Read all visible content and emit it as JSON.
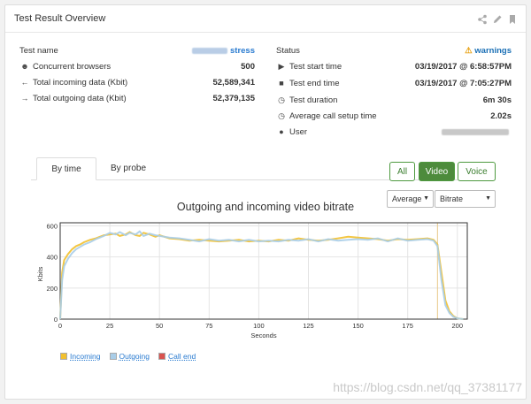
{
  "header": {
    "title": "Test Result Overview",
    "icons": [
      "share-icon",
      "pencil-icon",
      "bookmark-icon"
    ]
  },
  "left_info": {
    "test_name_label": "Test name",
    "test_name_value": "stress",
    "concurrent_label": "Concurrent browsers",
    "concurrent_value": "500",
    "incoming_label": "Total incoming data (Kbit)",
    "incoming_value": "52,589,341",
    "outgoing_label": "Total outgoing data (Kbit)",
    "outgoing_value": "52,379,135"
  },
  "right_info": {
    "status_label": "Status",
    "status_value": "warnings",
    "start_label": "Test start time",
    "start_value": "03/19/2017 @ 6:58:57PM",
    "end_label": "Test end time",
    "end_value": "03/19/2017 @ 7:05:27PM",
    "duration_label": "Test duration",
    "duration_value": "6m 30s",
    "setup_label": "Average call setup time",
    "setup_value": "2.02s",
    "user_label": "User"
  },
  "tabs": {
    "by_time": "By time",
    "by_probe": "By probe"
  },
  "filters": {
    "all": "All",
    "video": "Video",
    "voice": "Voice"
  },
  "selects": {
    "aggregate": "Average",
    "metric": "Bitrate"
  },
  "chart_data": {
    "type": "line",
    "title": "Outgoing and incoming video bitrate",
    "xlabel": "Seconds",
    "ylabel": "Kbits",
    "xlim": [
      0,
      205
    ],
    "ylim": [
      0,
      620
    ],
    "xticks": [
      0,
      25,
      50,
      75,
      100,
      125,
      150,
      175,
      200
    ],
    "yticks": [
      0,
      200,
      400,
      600
    ],
    "grid": true,
    "series": [
      {
        "name": "Incoming",
        "color": "#f2c02e",
        "x": [
          0,
          1,
          2,
          4,
          6,
          8,
          10,
          12,
          15,
          18,
          20,
          22,
          25,
          28,
          30,
          33,
          35,
          38,
          40,
          42,
          45,
          48,
          50,
          55,
          60,
          65,
          70,
          75,
          80,
          85,
          90,
          95,
          100,
          105,
          110,
          115,
          120,
          125,
          130,
          135,
          140,
          145,
          150,
          155,
          160,
          165,
          170,
          175,
          180,
          185,
          188,
          190,
          192,
          194,
          196,
          198,
          200,
          203
        ],
        "y": [
          0,
          300,
          380,
          420,
          450,
          470,
          480,
          495,
          510,
          520,
          530,
          540,
          545,
          550,
          535,
          545,
          560,
          540,
          535,
          555,
          545,
          530,
          540,
          520,
          515,
          505,
          510,
          505,
          500,
          505,
          510,
          500,
          505,
          500,
          510,
          505,
          520,
          510,
          505,
          510,
          520,
          530,
          525,
          520,
          515,
          505,
          515,
          510,
          515,
          520,
          510,
          480,
          300,
          120,
          50,
          20,
          5,
          0
        ]
      },
      {
        "name": "Outgoing",
        "color": "#a9cde8",
        "x": [
          0,
          1,
          2,
          4,
          6,
          8,
          10,
          12,
          15,
          18,
          20,
          22,
          25,
          28,
          30,
          33,
          35,
          38,
          40,
          42,
          45,
          48,
          50,
          55,
          60,
          65,
          70,
          75,
          80,
          85,
          90,
          95,
          100,
          105,
          110,
          115,
          120,
          125,
          130,
          135,
          140,
          145,
          150,
          155,
          160,
          165,
          170,
          175,
          180,
          185,
          188,
          190,
          192,
          194,
          196,
          198,
          200,
          203
        ],
        "y": [
          0,
          250,
          340,
          390,
          425,
          450,
          465,
          480,
          495,
          515,
          525,
          535,
          555,
          545,
          560,
          540,
          555,
          545,
          565,
          535,
          550,
          540,
          535,
          525,
          520,
          510,
          500,
          515,
          505,
          510,
          500,
          510,
          500,
          505,
          500,
          510,
          505,
          515,
          500,
          515,
          505,
          510,
          515,
          510,
          520,
          500,
          520,
          505,
          510,
          515,
          505,
          470,
          250,
          90,
          40,
          15,
          5,
          0
        ]
      },
      {
        "name": "Call end",
        "color": "#d9534f",
        "x": [],
        "y": []
      }
    ]
  }
}
